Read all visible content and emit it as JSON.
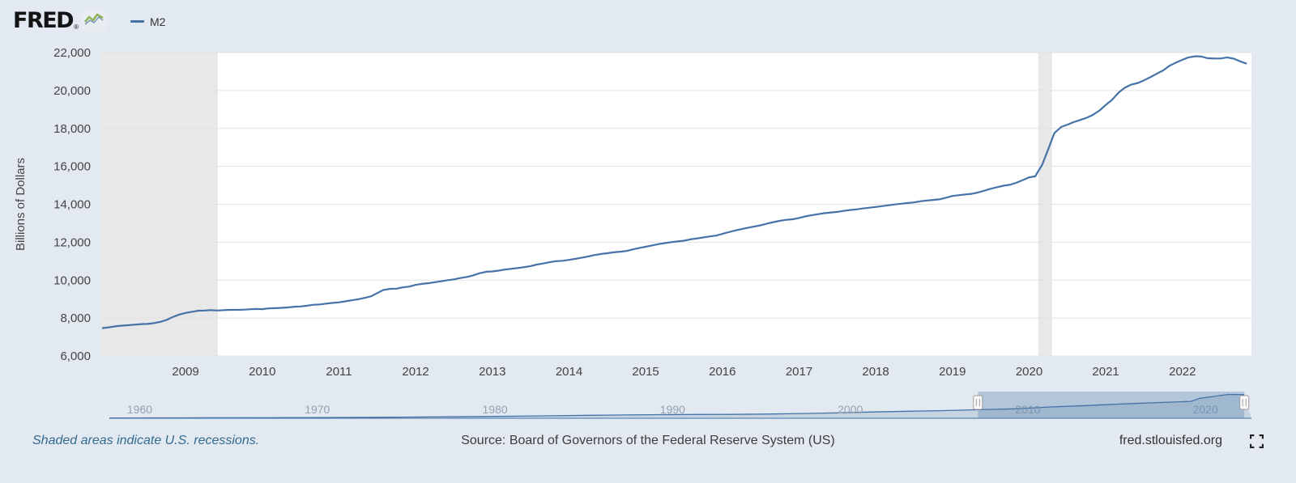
{
  "header": {
    "logo_text": "FRED",
    "logo_reg": "®",
    "legend": {
      "series_label": "M2"
    }
  },
  "colors": {
    "background": "#e2e9f0",
    "plot_bg": "#ffffff",
    "line": "#4573a7",
    "recession": "#e8e8e8",
    "grid": "#e2e2e2",
    "brush_area": "#c7d5e3",
    "brush_selected": "rgba(69,115,167,0.30)",
    "note_text": "#336a90"
  },
  "chart_data": {
    "type": "line",
    "title": "M2",
    "ylabel": "Billions of Dollars",
    "x_range": [
      2007.9,
      2022.9
    ],
    "y_range": [
      6000,
      22000
    ],
    "grid": true,
    "legend_position": "top-left",
    "y_ticks": [
      {
        "v": 6000,
        "label": "6,000"
      },
      {
        "v": 8000,
        "label": "8,000"
      },
      {
        "v": 10000,
        "label": "10,000"
      },
      {
        "v": 12000,
        "label": "12,000"
      },
      {
        "v": 14000,
        "label": "14,000"
      },
      {
        "v": 16000,
        "label": "16,000"
      },
      {
        "v": 18000,
        "label": "18,000"
      },
      {
        "v": 20000,
        "label": "20,000"
      },
      {
        "v": 22000,
        "label": "22,000"
      }
    ],
    "x_ticks": [
      {
        "v": 2009,
        "label": "2009"
      },
      {
        "v": 2010,
        "label": "2010"
      },
      {
        "v": 2011,
        "label": "2011"
      },
      {
        "v": 2012,
        "label": "2012"
      },
      {
        "v": 2013,
        "label": "2013"
      },
      {
        "v": 2014,
        "label": "2014"
      },
      {
        "v": 2015,
        "label": "2015"
      },
      {
        "v": 2016,
        "label": "2016"
      },
      {
        "v": 2017,
        "label": "2017"
      },
      {
        "v": 2018,
        "label": "2018"
      },
      {
        "v": 2019,
        "label": "2019"
      },
      {
        "v": 2020,
        "label": "2020"
      },
      {
        "v": 2021,
        "label": "2021"
      },
      {
        "v": 2022,
        "label": "2022"
      }
    ],
    "recessions": [
      [
        2007.9,
        2009.42
      ],
      [
        2020.12,
        2020.3
      ]
    ],
    "series": [
      {
        "name": "M2",
        "points": [
          [
            2007.92,
            7470
          ],
          [
            2008.0,
            7510
          ],
          [
            2008.08,
            7560
          ],
          [
            2008.17,
            7600
          ],
          [
            2008.25,
            7620
          ],
          [
            2008.33,
            7650
          ],
          [
            2008.42,
            7680
          ],
          [
            2008.5,
            7690
          ],
          [
            2008.58,
            7730
          ],
          [
            2008.67,
            7800
          ],
          [
            2008.75,
            7900
          ],
          [
            2008.83,
            8050
          ],
          [
            2008.92,
            8190
          ],
          [
            2009.0,
            8270
          ],
          [
            2009.08,
            8330
          ],
          [
            2009.17,
            8390
          ],
          [
            2009.25,
            8400
          ],
          [
            2009.33,
            8420
          ],
          [
            2009.42,
            8400
          ],
          [
            2009.5,
            8420
          ],
          [
            2009.58,
            8430
          ],
          [
            2009.67,
            8430
          ],
          [
            2009.75,
            8440
          ],
          [
            2009.83,
            8460
          ],
          [
            2009.92,
            8480
          ],
          [
            2010.0,
            8470
          ],
          [
            2010.08,
            8510
          ],
          [
            2010.17,
            8520
          ],
          [
            2010.25,
            8540
          ],
          [
            2010.33,
            8560
          ],
          [
            2010.42,
            8600
          ],
          [
            2010.5,
            8610
          ],
          [
            2010.58,
            8650
          ],
          [
            2010.67,
            8700
          ],
          [
            2010.75,
            8720
          ],
          [
            2010.83,
            8760
          ],
          [
            2010.92,
            8800
          ],
          [
            2011.0,
            8830
          ],
          [
            2011.08,
            8880
          ],
          [
            2011.17,
            8940
          ],
          [
            2011.25,
            8990
          ],
          [
            2011.33,
            9060
          ],
          [
            2011.42,
            9150
          ],
          [
            2011.5,
            9320
          ],
          [
            2011.58,
            9480
          ],
          [
            2011.67,
            9540
          ],
          [
            2011.75,
            9550
          ],
          [
            2011.83,
            9620
          ],
          [
            2011.92,
            9660
          ],
          [
            2012.0,
            9750
          ],
          [
            2012.08,
            9800
          ],
          [
            2012.17,
            9840
          ],
          [
            2012.25,
            9890
          ],
          [
            2012.33,
            9940
          ],
          [
            2012.42,
            10000
          ],
          [
            2012.5,
            10040
          ],
          [
            2012.58,
            10110
          ],
          [
            2012.67,
            10170
          ],
          [
            2012.75,
            10250
          ],
          [
            2012.83,
            10360
          ],
          [
            2012.92,
            10440
          ],
          [
            2013.0,
            10460
          ],
          [
            2013.08,
            10500
          ],
          [
            2013.17,
            10560
          ],
          [
            2013.25,
            10600
          ],
          [
            2013.33,
            10640
          ],
          [
            2013.42,
            10690
          ],
          [
            2013.5,
            10740
          ],
          [
            2013.58,
            10820
          ],
          [
            2013.67,
            10880
          ],
          [
            2013.75,
            10950
          ],
          [
            2013.83,
            11000
          ],
          [
            2013.92,
            11020
          ],
          [
            2014.0,
            11070
          ],
          [
            2014.08,
            11120
          ],
          [
            2014.17,
            11190
          ],
          [
            2014.25,
            11250
          ],
          [
            2014.33,
            11320
          ],
          [
            2014.42,
            11380
          ],
          [
            2014.5,
            11420
          ],
          [
            2014.58,
            11470
          ],
          [
            2014.67,
            11500
          ],
          [
            2014.75,
            11540
          ],
          [
            2014.83,
            11620
          ],
          [
            2014.92,
            11700
          ],
          [
            2015.0,
            11760
          ],
          [
            2015.08,
            11830
          ],
          [
            2015.17,
            11900
          ],
          [
            2015.25,
            11950
          ],
          [
            2015.33,
            12000
          ],
          [
            2015.42,
            12040
          ],
          [
            2015.5,
            12080
          ],
          [
            2015.58,
            12150
          ],
          [
            2015.67,
            12200
          ],
          [
            2015.75,
            12250
          ],
          [
            2015.83,
            12300
          ],
          [
            2015.92,
            12350
          ],
          [
            2016.0,
            12440
          ],
          [
            2016.08,
            12530
          ],
          [
            2016.17,
            12620
          ],
          [
            2016.25,
            12690
          ],
          [
            2016.33,
            12760
          ],
          [
            2016.42,
            12830
          ],
          [
            2016.5,
            12890
          ],
          [
            2016.58,
            12980
          ],
          [
            2016.67,
            13060
          ],
          [
            2016.75,
            13130
          ],
          [
            2016.83,
            13180
          ],
          [
            2016.92,
            13210
          ],
          [
            2017.0,
            13280
          ],
          [
            2017.08,
            13360
          ],
          [
            2017.17,
            13430
          ],
          [
            2017.25,
            13480
          ],
          [
            2017.33,
            13530
          ],
          [
            2017.42,
            13570
          ],
          [
            2017.5,
            13600
          ],
          [
            2017.58,
            13650
          ],
          [
            2017.67,
            13700
          ],
          [
            2017.75,
            13730
          ],
          [
            2017.83,
            13780
          ],
          [
            2017.92,
            13820
          ],
          [
            2018.0,
            13860
          ],
          [
            2018.08,
            13900
          ],
          [
            2018.17,
            13950
          ],
          [
            2018.25,
            13990
          ],
          [
            2018.33,
            14030
          ],
          [
            2018.42,
            14070
          ],
          [
            2018.5,
            14100
          ],
          [
            2018.58,
            14160
          ],
          [
            2018.67,
            14200
          ],
          [
            2018.75,
            14230
          ],
          [
            2018.83,
            14260
          ],
          [
            2018.92,
            14350
          ],
          [
            2019.0,
            14440
          ],
          [
            2019.08,
            14480
          ],
          [
            2019.17,
            14520
          ],
          [
            2019.25,
            14550
          ],
          [
            2019.33,
            14620
          ],
          [
            2019.42,
            14720
          ],
          [
            2019.5,
            14820
          ],
          [
            2019.58,
            14900
          ],
          [
            2019.67,
            14980
          ],
          [
            2019.75,
            15030
          ],
          [
            2019.83,
            15130
          ],
          [
            2019.92,
            15280
          ],
          [
            2020.0,
            15420
          ],
          [
            2020.08,
            15470
          ],
          [
            2020.17,
            16080
          ],
          [
            2020.25,
            16900
          ],
          [
            2020.33,
            17760
          ],
          [
            2020.42,
            18080
          ],
          [
            2020.5,
            18200
          ],
          [
            2020.58,
            18330
          ],
          [
            2020.67,
            18450
          ],
          [
            2020.75,
            18560
          ],
          [
            2020.83,
            18710
          ],
          [
            2020.92,
            18950
          ],
          [
            2021.0,
            19240
          ],
          [
            2021.08,
            19500
          ],
          [
            2021.17,
            19900
          ],
          [
            2021.25,
            20150
          ],
          [
            2021.33,
            20310
          ],
          [
            2021.42,
            20400
          ],
          [
            2021.5,
            20540
          ],
          [
            2021.58,
            20700
          ],
          [
            2021.67,
            20900
          ],
          [
            2021.75,
            21060
          ],
          [
            2021.83,
            21300
          ],
          [
            2021.92,
            21480
          ],
          [
            2022.0,
            21620
          ],
          [
            2022.08,
            21750
          ],
          [
            2022.17,
            21810
          ],
          [
            2022.25,
            21790
          ],
          [
            2022.33,
            21700
          ],
          [
            2022.42,
            21690
          ],
          [
            2022.5,
            21690
          ],
          [
            2022.58,
            21750
          ],
          [
            2022.67,
            21680
          ],
          [
            2022.75,
            21540
          ],
          [
            2022.83,
            21430
          ]
        ]
      }
    ],
    "brush": {
      "x_range": [
        1959,
        2023.3
      ],
      "selection": [
        2007.9,
        2022.9
      ],
      "labels": [
        {
          "v": 1960,
          "label": "1960"
        },
        {
          "v": 1970,
          "label": "1970"
        },
        {
          "v": 1980,
          "label": "1980"
        },
        {
          "v": 1990,
          "label": "1990"
        },
        {
          "v": 2000,
          "label": "2000"
        },
        {
          "v": 2010,
          "label": "2010"
        },
        {
          "v": 2020,
          "label": "2020"
        }
      ],
      "points": [
        [
          1959,
          287
        ],
        [
          1962,
          350
        ],
        [
          1965,
          440
        ],
        [
          1968,
          540
        ],
        [
          1970,
          600
        ],
        [
          1972,
          740
        ],
        [
          1974,
          880
        ],
        [
          1976,
          1100
        ],
        [
          1978,
          1350
        ],
        [
          1980,
          1590
        ],
        [
          1982,
          1900
        ],
        [
          1984,
          2280
        ],
        [
          1986,
          2700
        ],
        [
          1988,
          3000
        ],
        [
          1990,
          3270
        ],
        [
          1992,
          3420
        ],
        [
          1994,
          3490
        ],
        [
          1996,
          3800
        ],
        [
          1998,
          4300
        ],
        [
          2000,
          4900
        ],
        [
          2002,
          5700
        ],
        [
          2004,
          6400
        ],
        [
          2006,
          7000
        ],
        [
          2008,
          7800
        ],
        [
          2010,
          8600
        ],
        [
          2012,
          10250
        ],
        [
          2014,
          11500
        ],
        [
          2016,
          13000
        ],
        [
          2018,
          14200
        ],
        [
          2019.9,
          15300
        ],
        [
          2020.4,
          18100
        ],
        [
          2021,
          19400
        ],
        [
          2022,
          21600
        ],
        [
          2022.9,
          21450
        ]
      ]
    }
  },
  "footer": {
    "recession_note": "Shaded areas indicate U.S. recessions.",
    "source": "Source: Board of Governors of the Federal Reserve System (US)",
    "site": "fred.stlouisfed.org"
  }
}
